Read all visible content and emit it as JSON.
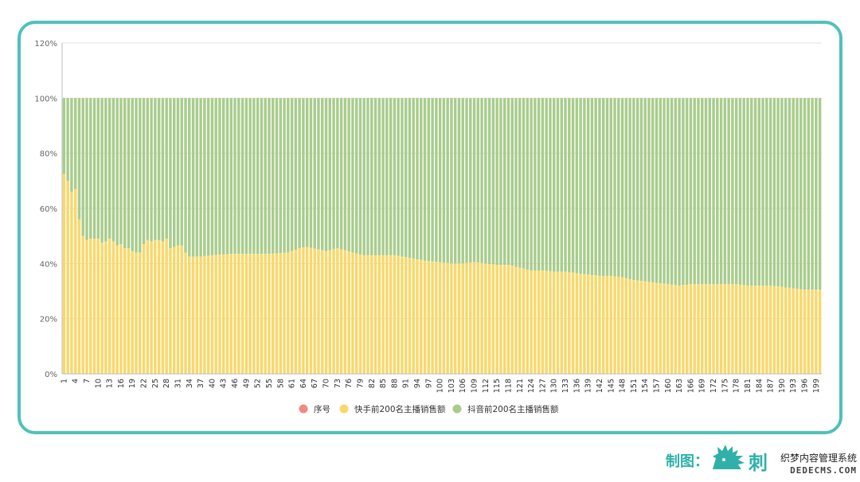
{
  "colors": {
    "frame": "#4fc1bb",
    "series_index": "#f08a82",
    "kuaishou": "#f9d86a",
    "douyin": "#a8cc8c",
    "credit": "#2fb1aa"
  },
  "legend": [
    {
      "label": "序号",
      "color": "#f08a82"
    },
    {
      "label": "快手前200名主播销售额",
      "color": "#f9d86a"
    },
    {
      "label": "抖音前200名主播销售额",
      "color": "#a8cc8c"
    }
  ],
  "footer": {
    "credit_label": "制图：",
    "brand_text": "刺猬公社",
    "watermark_line1": "织梦内容管理系统",
    "watermark_line2": "DEDECMS.COM"
  },
  "chart_data": {
    "type": "bar",
    "stacked": true,
    "percent_stacked": true,
    "x": {
      "start": 1,
      "end": 200
    },
    "x_tick_labels": [
      "1",
      "4",
      "7",
      "10",
      "13",
      "16",
      "19",
      "22",
      "25",
      "28",
      "31",
      "34",
      "37",
      "40",
      "43",
      "46",
      "49",
      "52",
      "55",
      "58",
      "61",
      "64",
      "67",
      "70",
      "73",
      "76",
      "79",
      "82",
      "85",
      "88",
      "91",
      "94",
      "97",
      "100",
      "103",
      "106",
      "109",
      "112",
      "115",
      "118",
      "121",
      "124",
      "127",
      "130",
      "133",
      "136",
      "139",
      "142",
      "145",
      "148",
      "151",
      "154",
      "157",
      "160",
      "163",
      "166",
      "169",
      "172",
      "175",
      "178",
      "181",
      "184",
      "187",
      "190",
      "193",
      "196",
      "199"
    ],
    "y_ticks": [
      "0%",
      "20%",
      "40%",
      "60%",
      "80%",
      "100%",
      "120%"
    ],
    "ylim": [
      0,
      120
    ],
    "legend_position": "bottom",
    "grid": true,
    "kuaishou_share_anchors": [
      [
        1,
        72.5
      ],
      [
        2,
        70
      ],
      [
        3,
        66
      ],
      [
        4,
        67
      ],
      [
        5,
        56
      ],
      [
        6,
        50
      ],
      [
        7,
        48.5
      ],
      [
        8,
        49
      ],
      [
        9,
        49
      ],
      [
        10,
        49
      ],
      [
        11,
        47.5
      ],
      [
        12,
        48
      ],
      [
        13,
        49
      ],
      [
        14,
        48
      ],
      [
        15,
        46.5
      ],
      [
        16,
        47
      ],
      [
        17,
        45.5
      ],
      [
        18,
        45.5
      ],
      [
        19,
        44.5
      ],
      [
        20,
        44
      ],
      [
        21,
        44
      ],
      [
        22,
        47
      ],
      [
        23,
        48.5
      ],
      [
        24,
        48
      ],
      [
        25,
        48.5
      ],
      [
        26,
        48.5
      ],
      [
        27,
        48
      ],
      [
        28,
        49
      ],
      [
        29,
        45.5
      ],
      [
        30,
        46
      ],
      [
        31,
        46.5
      ],
      [
        32,
        46.5
      ],
      [
        33,
        44
      ],
      [
        34,
        42.5
      ],
      [
        35,
        42.5
      ],
      [
        37,
        42.5
      ],
      [
        40,
        43
      ],
      [
        45,
        43.5
      ],
      [
        50,
        43.5
      ],
      [
        55,
        43.5
      ],
      [
        60,
        44
      ],
      [
        63,
        45.5
      ],
      [
        65,
        46
      ],
      [
        70,
        44.5
      ],
      [
        73,
        45.5
      ],
      [
        77,
        44
      ],
      [
        80,
        43
      ],
      [
        85,
        43
      ],
      [
        88,
        43
      ],
      [
        92,
        42
      ],
      [
        96,
        41
      ],
      [
        100,
        40.5
      ],
      [
        103,
        40
      ],
      [
        106,
        40
      ],
      [
        109,
        40.5
      ],
      [
        112,
        40
      ],
      [
        115,
        39.5
      ],
      [
        118,
        39.5
      ],
      [
        121,
        38.5
      ],
      [
        124,
        37.5
      ],
      [
        127,
        37.5
      ],
      [
        130,
        37
      ],
      [
        133,
        37
      ],
      [
        136,
        36.5
      ],
      [
        139,
        36
      ],
      [
        142,
        35.5
      ],
      [
        145,
        35.5
      ],
      [
        148,
        35
      ],
      [
        151,
        34
      ],
      [
        154,
        33.5
      ],
      [
        157,
        33
      ],
      [
        160,
        32.5
      ],
      [
        163,
        32
      ],
      [
        166,
        32.5
      ],
      [
        169,
        32.5
      ],
      [
        172,
        32.5
      ],
      [
        175,
        32.5
      ],
      [
        178,
        32.5
      ],
      [
        181,
        32
      ],
      [
        184,
        32
      ],
      [
        187,
        32
      ],
      [
        190,
        31.5
      ],
      [
        193,
        31
      ],
      [
        196,
        30.5
      ],
      [
        200,
        30.5
      ]
    ],
    "total_share": 100
  }
}
